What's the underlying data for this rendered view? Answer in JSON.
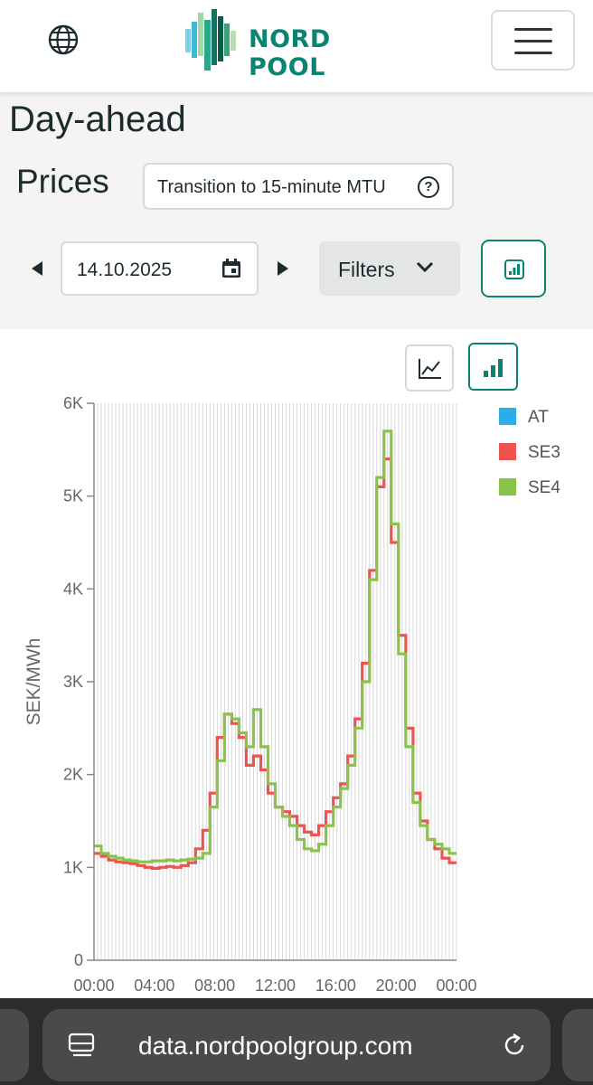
{
  "header": {
    "brand": "NORD POOL",
    "brand_color": "#0a8470",
    "globe_icon": "globe-icon",
    "menu_icon": "hamburger-menu-icon"
  },
  "page": {
    "title": "Day-ahead",
    "subtitle": "Prices",
    "transition_button": "Transition to 15-minute MTU",
    "date": "14.10.2025",
    "filters_label": "Filters"
  },
  "browser": {
    "url": "data.nordpoolgroup.com"
  },
  "chart_data": {
    "type": "line",
    "step": true,
    "ylabel": "SEK/MWh",
    "ylim": [
      0,
      6000
    ],
    "yticks": [
      "0",
      "1K",
      "2K",
      "3K",
      "4K",
      "5K",
      "6K"
    ],
    "xticks": [
      "00:00",
      "04:00",
      "08:00",
      "12:00",
      "16:00",
      "20:00",
      "00:00"
    ],
    "xlim": [
      0,
      24
    ],
    "grid": true,
    "legend_position": "top-right",
    "series": [
      {
        "name": "AT",
        "color": "#29aee9",
        "values": []
      },
      {
        "name": "SE3",
        "color": "#ef5350",
        "values": [
          1150,
          1120,
          1080,
          1060,
          1050,
          1040,
          1020,
          1000,
          990,
          1000,
          1010,
          1000,
          1020,
          1050,
          1200,
          1400,
          1800,
          2400,
          2650,
          2550,
          2400,
          2100,
          2200,
          2050,
          1800,
          1650,
          1600,
          1550,
          1450,
          1380,
          1350,
          1450,
          1600,
          1750,
          1900,
          2200,
          2600,
          3200,
          4200,
          5100,
          5400,
          4500,
          3500,
          2500,
          1800,
          1500,
          1300,
          1200,
          1100,
          1050
        ]
      },
      {
        "name": "SE4",
        "color": "#8bc34a",
        "values": [
          1230,
          1150,
          1120,
          1100,
          1080,
          1070,
          1060,
          1060,
          1070,
          1070,
          1080,
          1070,
          1080,
          1090,
          1100,
          1150,
          1650,
          2150,
          2650,
          2600,
          2450,
          2300,
          2700,
          2300,
          1900,
          1650,
          1550,
          1450,
          1300,
          1200,
          1180,
          1250,
          1450,
          1650,
          1850,
          2100,
          2500,
          3000,
          4100,
          5200,
          5700,
          4700,
          3300,
          2300,
          1700,
          1450,
          1300,
          1250,
          1200,
          1150
        ]
      }
    ]
  }
}
